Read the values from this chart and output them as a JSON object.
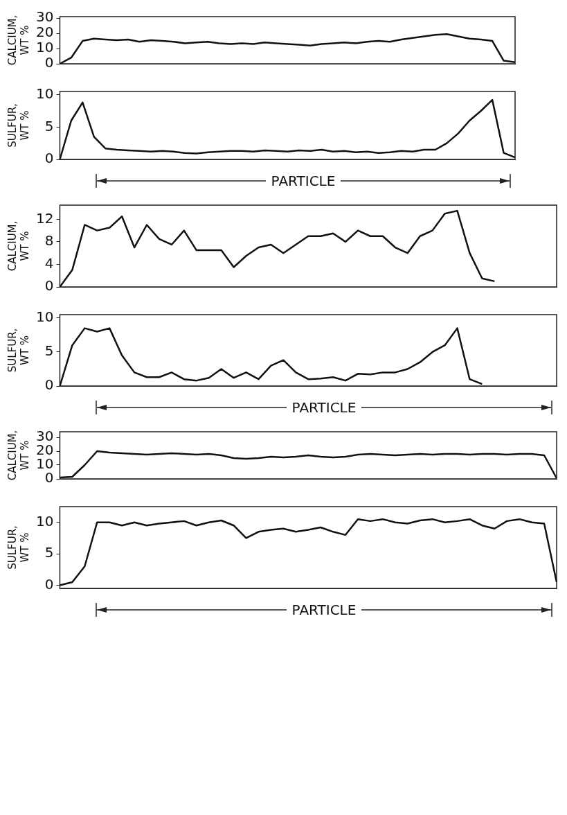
{
  "chart_data": [
    {
      "type": "line",
      "ylabel": "CALCIUM, WT %",
      "categories": [
        null,
        null,
        null,
        null,
        null,
        null,
        null,
        null,
        null,
        null,
        null,
        null,
        null,
        null,
        null,
        null,
        null,
        null,
        null,
        null,
        null,
        null,
        null,
        null,
        null,
        null,
        null,
        null,
        null,
        null,
        null,
        null,
        null,
        null,
        null,
        null,
        null,
        null,
        null,
        null,
        null
      ],
      "series": [
        {
          "color": "#111111",
          "values": [
            0,
            4,
            15,
            16.5,
            16,
            15.5,
            16,
            14.5,
            15.5,
            15,
            14.5,
            13.5,
            14,
            14.5,
            13.5,
            13,
            13.5,
            13,
            14,
            13.5,
            13,
            12.5,
            12,
            13,
            13.5,
            14,
            13.5,
            14.5,
            15,
            14.5,
            16,
            17,
            18,
            19,
            19.5,
            18,
            16.5,
            16,
            15,
            2,
            1
          ]
        }
      ],
      "ylim": [
        0,
        31
      ],
      "yticks": [
        0,
        10,
        20,
        30
      ],
      "tick_labels": "y",
      "grid": false,
      "marker": "none",
      "line_style": "solid"
    },
    {
      "type": "line",
      "ylabel": "SULFUR, WT %",
      "categories": [
        null,
        null,
        null,
        null,
        null,
        null,
        null,
        null,
        null,
        null,
        null,
        null,
        null,
        null,
        null,
        null,
        null,
        null,
        null,
        null,
        null,
        null,
        null,
        null,
        null,
        null,
        null,
        null,
        null,
        null,
        null,
        null,
        null,
        null,
        null,
        null,
        null,
        null,
        null,
        null,
        null
      ],
      "series": [
        {
          "color": "#111111",
          "values": [
            0,
            6,
            8.8,
            3.5,
            1.7,
            1.5,
            1.4,
            1.3,
            1.2,
            1.3,
            1.2,
            1,
            0.9,
            1.1,
            1.2,
            1.3,
            1.3,
            1.2,
            1.4,
            1.3,
            1.2,
            1.4,
            1.3,
            1.5,
            1.2,
            1.3,
            1.1,
            1.2,
            1,
            1.1,
            1.3,
            1.2,
            1.5,
            1.5,
            2.5,
            4,
            6,
            7.5,
            9.2,
            1,
            0.3
          ]
        }
      ],
      "ylim": [
        0,
        10.5
      ],
      "yticks": [
        0,
        5,
        10
      ],
      "tick_labels": "y",
      "grid": false,
      "marker": "none",
      "line_style": "solid",
      "annotations": [
        "PARTICLE"
      ]
    },
    {
      "type": "line",
      "ylabel": "CALCIUM, WT %",
      "categories": [
        null,
        null,
        null,
        null,
        null,
        null,
        null,
        null,
        null,
        null,
        null,
        null,
        null,
        null,
        null,
        null,
        null,
        null,
        null,
        null,
        null,
        null,
        null,
        null,
        null,
        null,
        null,
        null,
        null,
        null,
        null,
        null,
        null,
        null,
        null,
        null,
        null,
        null,
        null,
        null,
        null
      ],
      "series": [
        {
          "color": "#111111",
          "values": [
            0,
            3,
            11,
            10,
            10.5,
            12.5,
            7,
            11,
            8.5,
            7.5,
            10,
            6.5,
            6.5,
            6.5,
            3.5,
            5.5,
            7,
            7.5,
            6,
            7.5,
            9,
            9,
            9.5,
            8,
            10,
            9,
            9,
            7,
            6,
            9,
            10,
            13,
            13.5,
            6,
            1.5,
            1,
            null,
            null,
            null,
            null,
            null
          ]
        }
      ],
      "ylim": [
        0,
        14.5
      ],
      "yticks": [
        0,
        4,
        8,
        12
      ],
      "tick_labels": "y",
      "grid": false,
      "marker": "none",
      "line_style": "solid"
    },
    {
      "type": "line",
      "ylabel": "SULFUR, WT %",
      "categories": [
        null,
        null,
        null,
        null,
        null,
        null,
        null,
        null,
        null,
        null,
        null,
        null,
        null,
        null,
        null,
        null,
        null,
        null,
        null,
        null,
        null,
        null,
        null,
        null,
        null,
        null,
        null,
        null,
        null,
        null,
        null,
        null,
        null,
        null,
        null,
        null,
        null,
        null,
        null,
        null,
        null
      ],
      "series": [
        {
          "color": "#111111",
          "values": [
            0,
            6,
            8.5,
            8,
            8.5,
            4.5,
            2,
            1.3,
            1.3,
            2,
            1,
            0.8,
            1.2,
            2.5,
            1.2,
            2,
            1,
            3,
            3.8,
            2,
            1,
            1.1,
            1.3,
            0.8,
            1.8,
            1.7,
            2,
            2,
            2.5,
            3.5,
            5,
            6,
            8.5,
            1,
            0.3,
            null,
            null,
            null,
            null,
            null,
            null
          ]
        }
      ],
      "ylim": [
        0,
        10.5
      ],
      "yticks": [
        0,
        5,
        10
      ],
      "tick_labels": "y",
      "grid": false,
      "marker": "none",
      "line_style": "solid",
      "annotations": [
        "PARTICLE"
      ]
    },
    {
      "type": "line",
      "ylabel": "CALCIUM, WT %",
      "categories": [
        null,
        null,
        null,
        null,
        null,
        null,
        null,
        null,
        null,
        null,
        null,
        null,
        null,
        null,
        null,
        null,
        null,
        null,
        null,
        null,
        null,
        null,
        null,
        null,
        null,
        null,
        null,
        null,
        null,
        null,
        null,
        null,
        null,
        null,
        null,
        null,
        null,
        null,
        null,
        null,
        null
      ],
      "series": [
        {
          "color": "#111111",
          "values": [
            1,
            1.5,
            10,
            20,
            19,
            18.5,
            18,
            17.5,
            18,
            18.5,
            18,
            17.5,
            18,
            17,
            15,
            14.5,
            15,
            16,
            15.5,
            16,
            17,
            16,
            15.5,
            16,
            17.5,
            18,
            17.5,
            17,
            17.5,
            18,
            17.5,
            18,
            18,
            17.5,
            18,
            18,
            17.5,
            18,
            18,
            17,
            0.5
          ]
        }
      ],
      "ylim": [
        0,
        34
      ],
      "yticks": [
        0,
        10,
        20,
        30
      ],
      "tick_labels": "y",
      "grid": false,
      "marker": "none",
      "line_style": "solid"
    },
    {
      "type": "line",
      "ylabel": "SULFUR, WT %",
      "categories": [
        null,
        null,
        null,
        null,
        null,
        null,
        null,
        null,
        null,
        null,
        null,
        null,
        null,
        null,
        null,
        null,
        null,
        null,
        null,
        null,
        null,
        null,
        null,
        null,
        null,
        null,
        null,
        null,
        null,
        null,
        null,
        null,
        null,
        null,
        null,
        null,
        null,
        null,
        null,
        null,
        null
      ],
      "series": [
        {
          "color": "#111111",
          "values": [
            0,
            0.5,
            3,
            10,
            10,
            9.5,
            10,
            9.5,
            9.8,
            10,
            10.2,
            9.5,
            10,
            10.3,
            9.5,
            7.5,
            8.5,
            8.8,
            9,
            8.5,
            8.8,
            9.2,
            8.5,
            8,
            10.5,
            10.2,
            10.5,
            10,
            9.8,
            10.3,
            10.5,
            10,
            10.2,
            10.5,
            9.5,
            9,
            10.2,
            10.5,
            10,
            9.8,
            0.5
          ]
        }
      ],
      "ylim": [
        -0.5,
        12.5
      ],
      "yticks": [
        0,
        5,
        10
      ],
      "tick_labels": "y",
      "grid": false,
      "marker": "none",
      "line_style": "solid",
      "annotations": [
        "PARTICLE"
      ]
    }
  ]
}
